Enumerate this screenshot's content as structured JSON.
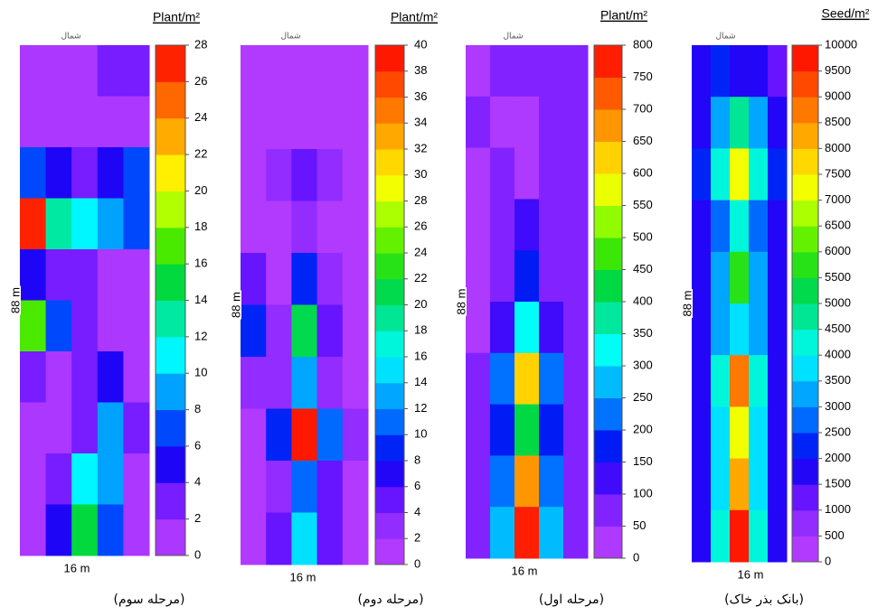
{
  "colormap": [
    "#c040ff",
    "#9a30ff",
    "#6010ff",
    "#0000f0",
    "#0060ff",
    "#00b0ff",
    "#00ffff",
    "#00e8a0",
    "#00d840",
    "#40e800",
    "#a0ff00",
    "#ffff00",
    "#ffc000",
    "#ff8000",
    "#ff4000",
    "#ff0000"
  ],
  "chart_data": [
    {
      "type": "contour",
      "title": "Plant/m²",
      "north_label": "شمال",
      "xlabel": "16 m",
      "ylabel": "88 m",
      "caption": "(مرحله سوم)",
      "zlim": [
        0,
        28
      ],
      "zticks": [
        0,
        2,
        4,
        6,
        8,
        10,
        12,
        14,
        16,
        18,
        20,
        22,
        24,
        26,
        28
      ],
      "z": [
        [
          1,
          1,
          1,
          2,
          3
        ],
        [
          1,
          1,
          1,
          1,
          1
        ],
        [
          6,
          4,
          3,
          4,
          6
        ],
        [
          26,
          12,
          10,
          8,
          6
        ],
        [
          4,
          2,
          2,
          1,
          1
        ],
        [
          16,
          6,
          2,
          1,
          1
        ],
        [
          2,
          1,
          2,
          4,
          1
        ],
        [
          1,
          1,
          2,
          9,
          3
        ],
        [
          1,
          2,
          10,
          8,
          1
        ],
        [
          1,
          4,
          14,
          6,
          1
        ]
      ]
    },
    {
      "type": "contour",
      "title": "Plant/m²",
      "north_label": "شمال",
      "xlabel": "16 m",
      "ylabel": "88 m",
      "caption": "(مرحله دوم)",
      "zlim": [
        0,
        40
      ],
      "zticks": [
        0,
        2,
        4,
        6,
        8,
        10,
        12,
        14,
        16,
        18,
        20,
        22,
        24,
        26,
        28,
        30,
        32,
        34,
        36,
        38,
        40
      ],
      "z": [
        [
          1,
          1,
          1,
          1,
          1
        ],
        [
          1,
          1,
          1,
          1,
          1
        ],
        [
          1,
          2,
          5,
          3,
          1
        ],
        [
          1,
          1,
          2,
          1,
          1
        ],
        [
          4,
          1,
          8,
          3,
          1
        ],
        [
          8,
          2,
          20,
          4,
          1
        ],
        [
          2,
          3,
          12,
          3,
          1
        ],
        [
          1,
          8,
          38,
          10,
          2
        ],
        [
          1,
          3,
          10,
          4,
          1
        ],
        [
          1,
          4,
          14,
          5,
          1
        ]
      ]
    },
    {
      "type": "contour",
      "title": "Plant/m²",
      "north_label": "شمال",
      "xlabel": "16 m",
      "ylabel": "88 m",
      "caption": "(مرحله اول)",
      "zlim": [
        0,
        800
      ],
      "zticks": [
        0,
        50,
        100,
        150,
        200,
        250,
        300,
        350,
        400,
        450,
        500,
        550,
        600,
        650,
        700,
        750,
        800
      ],
      "z": [
        [
          40,
          60,
          80,
          80,
          60
        ],
        [
          60,
          40,
          20,
          60,
          80
        ],
        [
          40,
          60,
          40,
          60,
          60
        ],
        [
          40,
          60,
          120,
          60,
          60
        ],
        [
          40,
          80,
          160,
          80,
          60
        ],
        [
          40,
          120,
          320,
          120,
          60
        ],
        [
          60,
          200,
          600,
          200,
          60
        ],
        [
          60,
          160,
          400,
          160,
          60
        ],
        [
          60,
          200,
          650,
          200,
          60
        ],
        [
          80,
          250,
          800,
          250,
          80
        ]
      ]
    },
    {
      "type": "contour",
      "title": "Seed/m²",
      "north_label": "شمال",
      "xlabel": "16 m",
      "ylabel": "88 m",
      "caption": "(بانک بذر خاک)",
      "zlim": [
        0,
        10000
      ],
      "zticks": [
        0,
        500,
        1000,
        1500,
        2000,
        2500,
        3000,
        3500,
        4000,
        4500,
        5000,
        5500,
        6000,
        6500,
        7000,
        7500,
        8000,
        8500,
        9000,
        9500,
        10000
      ],
      "z": [
        [
          1500,
          2000,
          1500,
          1500,
          1000
        ],
        [
          1500,
          3000,
          4500,
          3000,
          1500
        ],
        [
          2000,
          4000,
          7000,
          4000,
          2000
        ],
        [
          1500,
          2500,
          4000,
          2500,
          1500
        ],
        [
          1500,
          3000,
          5500,
          3000,
          1500
        ],
        [
          1500,
          3000,
          3500,
          3000,
          1500
        ],
        [
          1500,
          4000,
          8500,
          4000,
          1500
        ],
        [
          1500,
          3500,
          7000,
          3500,
          1500
        ],
        [
          1500,
          3500,
          8000,
          3500,
          1500
        ],
        [
          1500,
          4000,
          10000,
          4000,
          1500
        ]
      ]
    }
  ]
}
